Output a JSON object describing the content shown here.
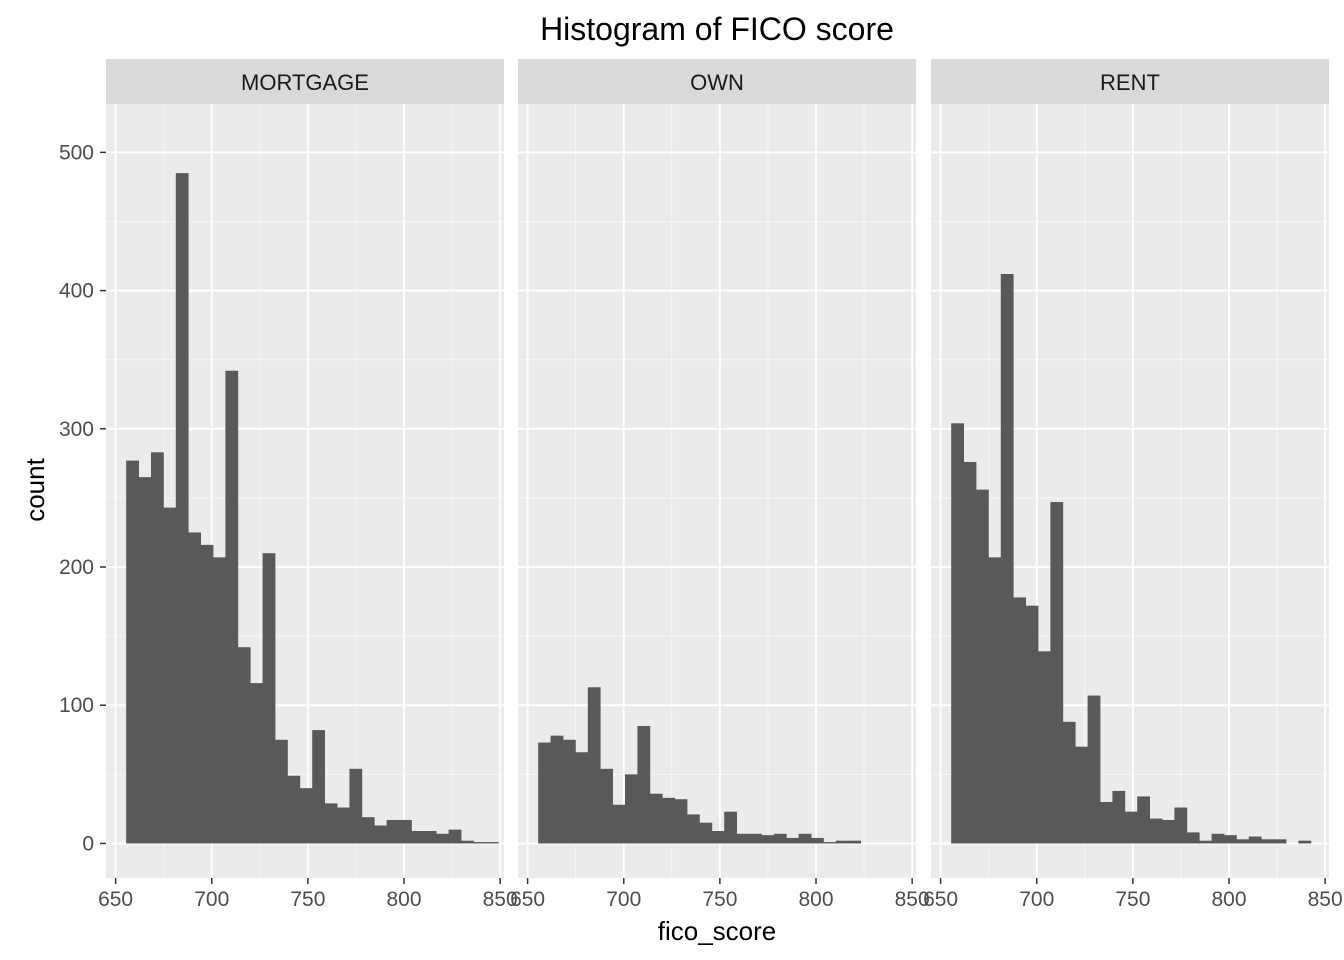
{
  "chart_data": {
    "type": "bar",
    "title": "Histogram of FICO score",
    "xlabel": "fico_score",
    "ylabel": "count",
    "xlim": [
      645,
      852
    ],
    "ylim": [
      -25,
      535
    ],
    "x_ticks": [
      650,
      700,
      750,
      800,
      850
    ],
    "x_tick_labels": [
      "650",
      "700",
      "750",
      "800",
      "850"
    ],
    "y_ticks": [
      0,
      100,
      200,
      300,
      400,
      500
    ],
    "y_tick_labels": [
      "0",
      "100",
      "200",
      "300",
      "400",
      "500"
    ],
    "grid": true,
    "bar_color": "#595959",
    "panel_background": "#ebebeb",
    "strip_background": "#d9d9d9",
    "bin_width": 6.45,
    "bin_start": 655.5,
    "facets": [
      {
        "label": "MORTGAGE",
        "counts": [
          277,
          265,
          283,
          243,
          485,
          225,
          216,
          207,
          342,
          142,
          116,
          210,
          75,
          49,
          40,
          82,
          29,
          26,
          54,
          19,
          13,
          17,
          17,
          9,
          9,
          7,
          10,
          2,
          1,
          1
        ]
      },
      {
        "label": "OWN",
        "counts": [
          73,
          78,
          75,
          66,
          113,
          54,
          28,
          50,
          85,
          36,
          33,
          32,
          21,
          15,
          9,
          23,
          7,
          7,
          6,
          7,
          4,
          7,
          4,
          1,
          2,
          2
        ]
      },
      {
        "label": "RENT",
        "counts": [
          304,
          276,
          256,
          207,
          412,
          178,
          172,
          139,
          247,
          88,
          70,
          107,
          30,
          38,
          23,
          34,
          18,
          17,
          26,
          8,
          2,
          7,
          6,
          3,
          5,
          3,
          3,
          0,
          2
        ]
      }
    ]
  }
}
